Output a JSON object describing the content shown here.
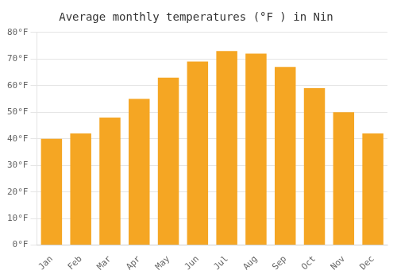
{
  "chart_data": {
    "type": "bar",
    "title": "Average monthly temperatures (°F ) in Nin",
    "categories": [
      "Jan",
      "Feb",
      "Mar",
      "Apr",
      "May",
      "Jun",
      "Jul",
      "Aug",
      "Sep",
      "Oct",
      "Nov",
      "Dec"
    ],
    "values": [
      40,
      42,
      48,
      55,
      63,
      69,
      73,
      72,
      67,
      59,
      50,
      42
    ],
    "color": "#F5A623",
    "ylim": [
      0,
      80
    ],
    "yticks": [
      {
        "value": 0,
        "label": "0°F"
      },
      {
        "value": 10,
        "label": "10°F"
      },
      {
        "value": 20,
        "label": "20°F"
      },
      {
        "value": 30,
        "label": "30°F"
      },
      {
        "value": 40,
        "label": "40°F"
      },
      {
        "value": 50,
        "label": "50°F"
      },
      {
        "value": 60,
        "label": "60°F"
      },
      {
        "value": 70,
        "label": "70°F"
      },
      {
        "value": 80,
        "label": "80°F"
      }
    ],
    "grid": true
  }
}
